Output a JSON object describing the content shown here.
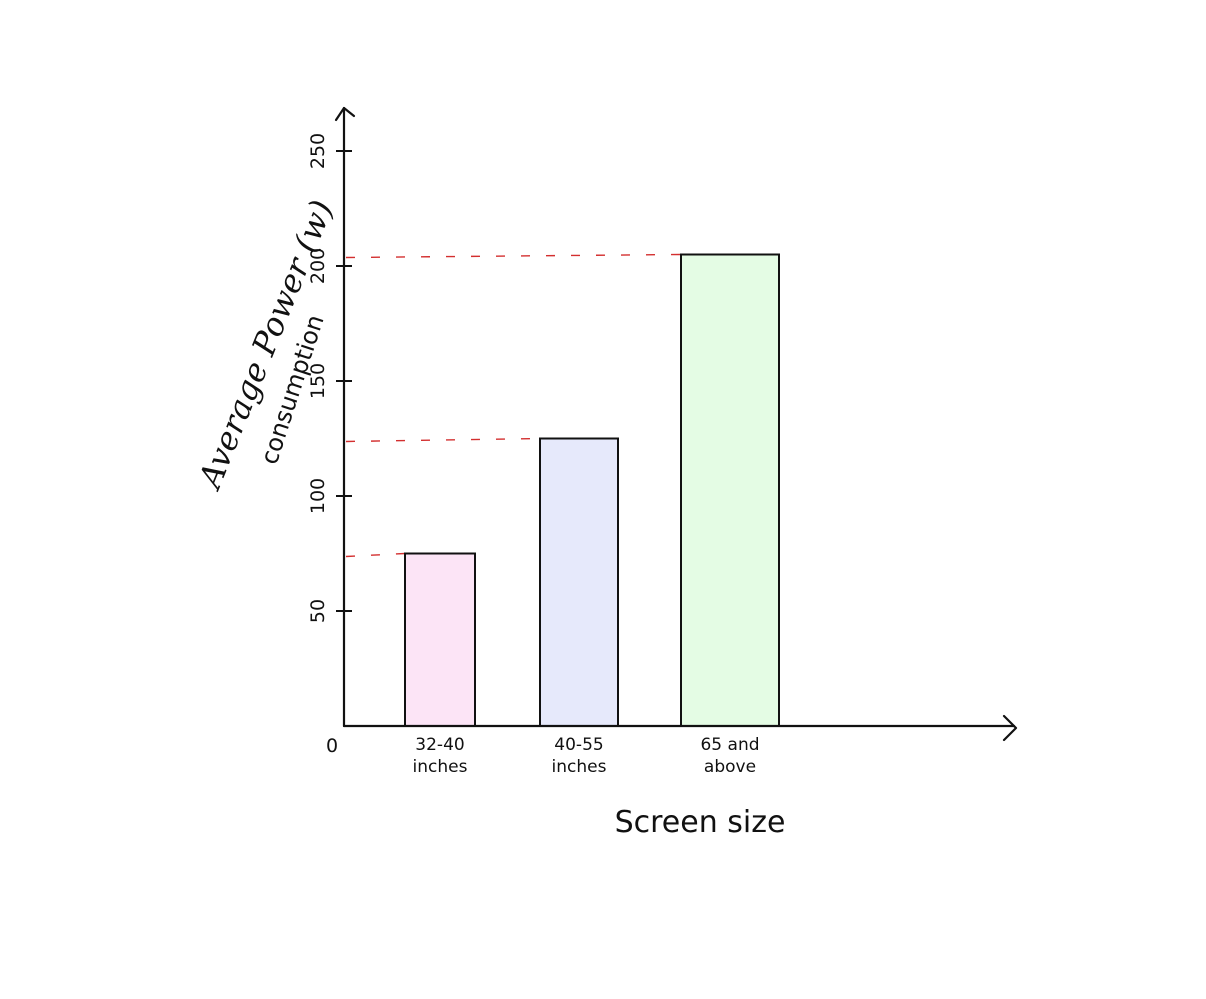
{
  "chart_data": {
    "type": "bar",
    "title": "",
    "xlabel": "Screen size",
    "ylabel": "Average Power (w)",
    "ylabel_line2": "consumption",
    "categories": [
      [
        "32-40",
        "inches"
      ],
      [
        "40-55",
        "inches"
      ],
      [
        "65 and",
        "above"
      ]
    ],
    "values": [
      75,
      125,
      205
    ],
    "colors": [
      "#fce4f6",
      "#e6e9fb",
      "#e4fce4"
    ],
    "guide_color": "#d32f2f",
    "origin_label": "0",
    "yticks": [
      50,
      100,
      150,
      200,
      250
    ],
    "ylim": [
      0,
      275
    ],
    "grid": false,
    "legend": "none"
  }
}
